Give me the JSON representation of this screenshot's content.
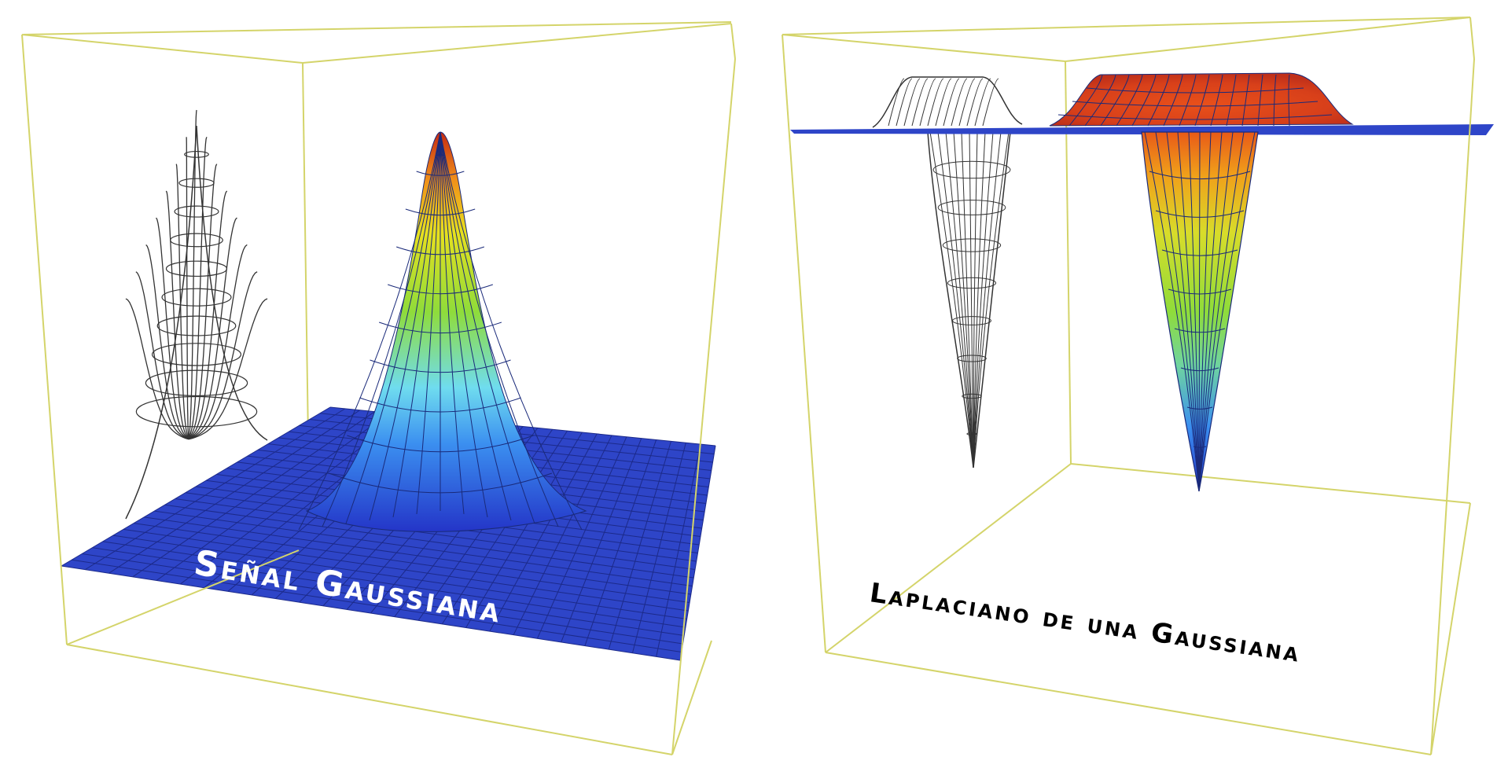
{
  "panels": [
    {
      "id": "left",
      "title": "Señal Gaussiana",
      "surface": "gaussian",
      "colormap": [
        "#2435c8",
        "#2f6fe6",
        "#55c8ee",
        "#8fdc3a",
        "#e4e21e",
        "#f08a1a",
        "#c92a12"
      ],
      "plane_color": "#2e45c8",
      "box_color": "#d4d46a",
      "wire_color": "#333333"
    },
    {
      "id": "right",
      "title": "Laplaciano de una  Gaussiana",
      "surface": "laplacian_of_gaussian",
      "colormap": [
        "#2435c8",
        "#2f6fe6",
        "#55c8ee",
        "#8fdc3a",
        "#e4e21e",
        "#f08a1a",
        "#c92a12"
      ],
      "plane_color": "#2e45c8",
      "box_color": "#d4d46a",
      "wire_color": "#333333"
    }
  ]
}
